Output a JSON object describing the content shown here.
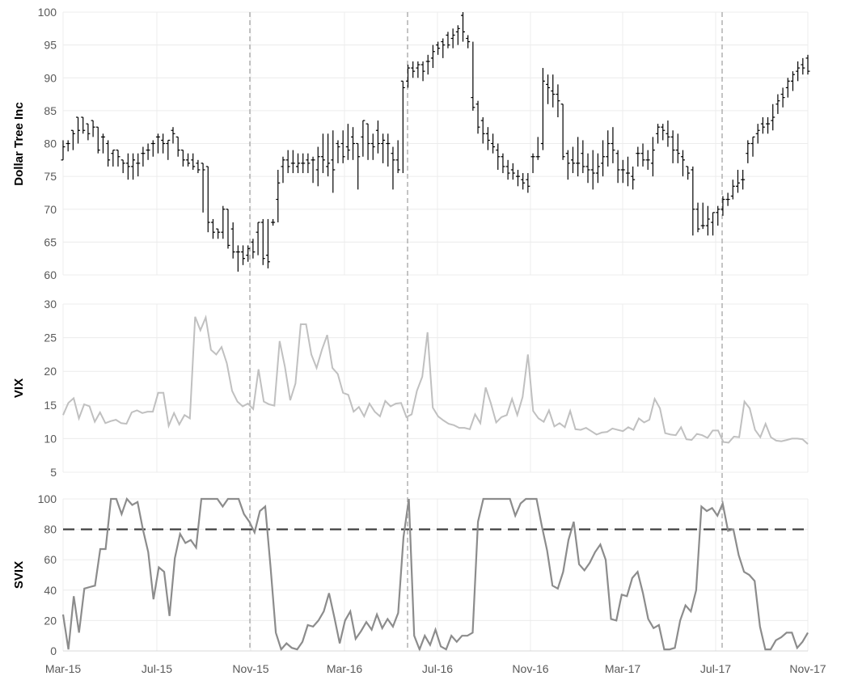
{
  "chart_data": {
    "type": "line",
    "x_labels": [
      "Mar-15",
      "Jul-15",
      "Nov-15",
      "Mar-16",
      "Jul-16",
      "Nov-16",
      "Mar-17",
      "Jul-17",
      "Nov-17"
    ],
    "event_markers": [
      "Nov-15",
      "Jun-16",
      "Jul-17"
    ],
    "colors": {
      "price": "#000000",
      "vix": "#c0c0c0",
      "svix": "#8c8c8c",
      "threshold": "#404040",
      "marker": "#b0b0b0",
      "grid": "#ececec"
    },
    "panels": [
      {
        "ylabel": "Dollar Tree Inc",
        "chart_type": "ohlc",
        "ylim": [
          60,
          100
        ],
        "yticks": [
          60,
          65,
          70,
          75,
          80,
          85,
          90,
          95,
          100
        ],
        "ohlc": [
          [
            77.5,
            80.5,
            77.5,
            79.5
          ],
          [
            80,
            80.5,
            78.8,
            80
          ],
          [
            82,
            82,
            79,
            81.5
          ],
          [
            84,
            84,
            80,
            82
          ],
          [
            84,
            84,
            81.5,
            82
          ],
          [
            83,
            83,
            80.5,
            81.5
          ],
          [
            83.5,
            83.5,
            81,
            82.5
          ],
          [
            82.5,
            82.5,
            78.5,
            79
          ],
          [
            81,
            81.5,
            78.5,
            81
          ],
          [
            80,
            80.5,
            76.5,
            77.5
          ],
          [
            78.5,
            79,
            76.5,
            79
          ],
          [
            79,
            79,
            76.5,
            78
          ],
          [
            77.5,
            77.5,
            75.5,
            77
          ],
          [
            77,
            78.5,
            74.5,
            76.5
          ],
          [
            76.5,
            78.5,
            74.5,
            77.5
          ],
          [
            77,
            78.5,
            75,
            77
          ],
          [
            78.5,
            79.5,
            76.5,
            78.5
          ],
          [
            79,
            80,
            77.5,
            79
          ],
          [
            80,
            80.5,
            78,
            80
          ],
          [
            81,
            81.5,
            78.5,
            81
          ],
          [
            80.5,
            81.5,
            78.5,
            80
          ],
          [
            80,
            80.5,
            77.5,
            80.5
          ],
          [
            82,
            82.5,
            80,
            81.5
          ],
          [
            81,
            81,
            78,
            79
          ],
          [
            79,
            79,
            76.5,
            77.5
          ],
          [
            77.5,
            78.5,
            76.5,
            77
          ],
          [
            77.5,
            78.5,
            76,
            76.5
          ],
          [
            77,
            77.5,
            75.5,
            76
          ],
          [
            77,
            77,
            69.5,
            76
          ],
          [
            76.5,
            76.5,
            66.5,
            68
          ],
          [
            68,
            68.5,
            65.5,
            66.5
          ],
          [
            67,
            67,
            65.5,
            66.5
          ],
          [
            66.5,
            70.5,
            65.5,
            70
          ],
          [
            70,
            70,
            64,
            64.5
          ],
          [
            67,
            68,
            62.5,
            63.5
          ],
          [
            63.5,
            64.5,
            60.5,
            63.5
          ],
          [
            63.5,
            64.5,
            61.5,
            62.5
          ],
          [
            63,
            64.5,
            62,
            64
          ],
          [
            65,
            65.5,
            62.5,
            63.5
          ],
          [
            66.5,
            68,
            63,
            68
          ],
          [
            68,
            68.5,
            61.5,
            62.5
          ],
          [
            63,
            68.5,
            61,
            62
          ],
          [
            68,
            68.5,
            67.5,
            68
          ],
          [
            71.5,
            76,
            68,
            74
          ],
          [
            76.5,
            78,
            74,
            77.5
          ],
          [
            77.5,
            79,
            75.5,
            76.5
          ],
          [
            77,
            79,
            75.5,
            77
          ],
          [
            76.5,
            78.5,
            75.5,
            77
          ],
          [
            77,
            78.5,
            75.5,
            77
          ],
          [
            77.5,
            78.5,
            75.5,
            77
          ],
          [
            77.5,
            78,
            74,
            77.5
          ],
          [
            76,
            79.5,
            73.5,
            78
          ],
          [
            78,
            81.5,
            75.5,
            77.5
          ],
          [
            76.5,
            81.5,
            75,
            77
          ],
          [
            77.5,
            82,
            72.5,
            76
          ],
          [
            80,
            80.5,
            77,
            79.5
          ],
          [
            80,
            82,
            77,
            78
          ],
          [
            79.5,
            83,
            77.5,
            79
          ],
          [
            81,
            82.5,
            77.5,
            80
          ],
          [
            80,
            80,
            73,
            78
          ],
          [
            81,
            83.5,
            78,
            83.5
          ],
          [
            83,
            83,
            77.5,
            80
          ],
          [
            80,
            81.5,
            77.5,
            79.5
          ],
          [
            82,
            83.5,
            78.5,
            80
          ],
          [
            80,
            81.5,
            77,
            80.5
          ],
          [
            80,
            81.5,
            76.5,
            80
          ],
          [
            78.5,
            79.5,
            73,
            77.5
          ],
          [
            77.5,
            80.5,
            75.5,
            76
          ],
          [
            89.5,
            89.5,
            75.5,
            88.5
          ],
          [
            89.5,
            92,
            88.5,
            91.5
          ],
          [
            91.5,
            92.5,
            90,
            91
          ],
          [
            91.5,
            92.5,
            90,
            92
          ],
          [
            92,
            92.5,
            89.5,
            91
          ],
          [
            92.5,
            93.5,
            90.5,
            92.5
          ],
          [
            93,
            95,
            91.5,
            94
          ],
          [
            95,
            95.5,
            93.5,
            94.5
          ],
          [
            95.5,
            96,
            93,
            95
          ],
          [
            96.5,
            97,
            94.5,
            95
          ],
          [
            96,
            97.5,
            94.5,
            96.5
          ],
          [
            97,
            98,
            95,
            97.5
          ],
          [
            99.5,
            100,
            95.5,
            97
          ],
          [
            96,
            96.5,
            94.5,
            95.5
          ],
          [
            87,
            95.5,
            85,
            85.5
          ],
          [
            86,
            86.5,
            81.5,
            82.5
          ],
          [
            83.5,
            84,
            80,
            81.5
          ],
          [
            81.5,
            82.5,
            79,
            80.5
          ],
          [
            80,
            81.5,
            78.5,
            79.5
          ],
          [
            79,
            80,
            76,
            78
          ],
          [
            78,
            78.5,
            75.5,
            76.5
          ],
          [
            76.5,
            77.5,
            74.5,
            75.5
          ],
          [
            76,
            77,
            74.5,
            75.5
          ],
          [
            75,
            76,
            73.5,
            75
          ],
          [
            74.5,
            75.5,
            73,
            74
          ],
          [
            74.5,
            75.5,
            72.5,
            73.5
          ],
          [
            78,
            78.5,
            75.5,
            78
          ],
          [
            78,
            81,
            77.5,
            78
          ],
          [
            80,
            91.5,
            79,
            89.5
          ],
          [
            89,
            90.5,
            86,
            88.5
          ],
          [
            88,
            90.5,
            85.5,
            87.5
          ],
          [
            87.5,
            89,
            84,
            86.5
          ],
          [
            86,
            86,
            77.5,
            78
          ],
          [
            78.5,
            79,
            74.5,
            77
          ],
          [
            77.5,
            79.5,
            75.5,
            77
          ],
          [
            77,
            81,
            75,
            77
          ],
          [
            78.5,
            80.5,
            75.5,
            76.5
          ],
          [
            76.5,
            78.5,
            74,
            76
          ],
          [
            76,
            79,
            73,
            75.5
          ],
          [
            75.5,
            78.5,
            74,
            76.5
          ],
          [
            77,
            80.5,
            75,
            78
          ],
          [
            78,
            82,
            76.5,
            80
          ],
          [
            80,
            82.5,
            77,
            79
          ],
          [
            78.5,
            79,
            74,
            76
          ],
          [
            76,
            77.5,
            74,
            76
          ],
          [
            75.5,
            78,
            73.5,
            75.5
          ],
          [
            75,
            76.5,
            73,
            74.5
          ],
          [
            78.5,
            79.5,
            76.5,
            78.5
          ],
          [
            78.5,
            80,
            76.5,
            77.5
          ],
          [
            77.5,
            79,
            76,
            77.5
          ],
          [
            77,
            81,
            75,
            79
          ],
          [
            81.5,
            83,
            80,
            82.5
          ],
          [
            82.5,
            83,
            80.5,
            82
          ],
          [
            81.5,
            83.5,
            79.5,
            81
          ],
          [
            81,
            82,
            77,
            79
          ],
          [
            79,
            81.5,
            77,
            78.5
          ],
          [
            78,
            79,
            75,
            77.5
          ],
          [
            76.5,
            76.5,
            74.5,
            75.5
          ],
          [
            76,
            76.5,
            66,
            70
          ],
          [
            70,
            71,
            66.5,
            67
          ],
          [
            67.5,
            71,
            67,
            67.5
          ],
          [
            67.5,
            70.5,
            66,
            68.5
          ],
          [
            68,
            69.5,
            66,
            69.5
          ],
          [
            69.5,
            70.5,
            67.5,
            70
          ],
          [
            70,
            72,
            69,
            71.5
          ],
          [
            71.5,
            72.5,
            70.5,
            71.5
          ],
          [
            72,
            74.5,
            71.5,
            73.5
          ],
          [
            73.5,
            76,
            72.5,
            74
          ],
          [
            74.5,
            76,
            73,
            74.5
          ],
          [
            78.5,
            80.5,
            77,
            80
          ],
          [
            80,
            81,
            78,
            81
          ],
          [
            81.5,
            83,
            80,
            82
          ],
          [
            83,
            84,
            81.5,
            82.5
          ],
          [
            83,
            84,
            81.5,
            83
          ],
          [
            83.5,
            86,
            82,
            84
          ],
          [
            86,
            87.5,
            84.5,
            86.5
          ],
          [
            87.5,
            88.5,
            85.5,
            87
          ],
          [
            88.5,
            90,
            87,
            89.5
          ],
          [
            89.5,
            91,
            88,
            90.5
          ],
          [
            91,
            92.5,
            89.5,
            91.5
          ],
          [
            92,
            93,
            90.5,
            91.5
          ],
          [
            93,
            93.5,
            90.5,
            91
          ]
        ]
      },
      {
        "ylabel": "VIX",
        "ylim": [
          5,
          30
        ],
        "yticks": [
          5,
          10,
          15,
          20,
          25,
          30
        ],
        "values": [
          13.5,
          15.3,
          16,
          13,
          15.1,
          14.8,
          12.5,
          13.9,
          12.3,
          12.6,
          12.8,
          12.3,
          12.2,
          13.9,
          14.2,
          13.8,
          14,
          14,
          16.8,
          16.8,
          11.9,
          13.8,
          12.1,
          13.5,
          13,
          28.1,
          26.1,
          28,
          23.2,
          22.5,
          23.6,
          21.2,
          17.1,
          15.5,
          14.8,
          15.2,
          14.4,
          20.3,
          15.5,
          15.1,
          14.9,
          24.5,
          20.7,
          15.7,
          18.2,
          27,
          27,
          22.5,
          20.5,
          23.2,
          25.4,
          20.5,
          19.6,
          16.8,
          16.5,
          14,
          14.7,
          13.3,
          15.2,
          14,
          13.3,
          15.6,
          14.8,
          15.2,
          15.3,
          13.2,
          13.6,
          17.1,
          19.2,
          25.8,
          14.6,
          13.3,
          12.7,
          12.2,
          12,
          11.6,
          11.6,
          11.4,
          13.6,
          12.3,
          17.6,
          15.2,
          12.4,
          13.2,
          13.5,
          15.9,
          13.5,
          16.2,
          22.5,
          14.1,
          13,
          12.5,
          14.2,
          11.8,
          12.3,
          11.7,
          14.1,
          11.4,
          11.3,
          11.6,
          11.1,
          10.6,
          10.9,
          11,
          11.5,
          11.3,
          11.1,
          11.7,
          11.3,
          13,
          12.4,
          12.8,
          15.9,
          14.5,
          10.8,
          10.6,
          10.5,
          11.7,
          9.9,
          9.8,
          10.7,
          10.5,
          10.1,
          11.2,
          11.2,
          9.5,
          9.4,
          10.3,
          10.2,
          15.5,
          14.5,
          11.3,
          10.2,
          12.2,
          10.2,
          9.7,
          9.6,
          9.8,
          10,
          10,
          9.9,
          9.2
        ]
      },
      {
        "ylabel": "SVIX",
        "ylim": [
          0,
          100
        ],
        "yticks": [
          0,
          20,
          40,
          60,
          80,
          100
        ],
        "threshold": 80,
        "values": [
          24,
          1,
          36,
          12,
          41,
          42,
          43,
          67,
          67,
          100,
          100,
          90,
          100,
          96,
          98,
          80,
          65,
          34,
          55,
          52,
          23,
          61,
          77,
          71,
          73,
          68,
          100,
          100,
          100,
          100,
          95,
          100,
          100,
          100,
          90,
          85,
          78,
          92,
          95,
          55,
          12,
          1,
          5,
          2,
          1,
          6,
          17,
          16,
          20,
          26,
          38,
          22,
          5,
          20,
          26,
          8,
          13,
          19,
          14,
          24,
          15,
          21,
          16,
          25,
          75,
          100,
          10,
          1,
          10,
          4,
          14,
          3,
          1,
          10,
          6,
          10,
          10,
          12,
          85,
          100,
          100,
          100,
          100,
          100,
          100,
          89,
          97,
          100,
          100,
          100,
          82,
          66,
          43,
          41,
          52,
          73,
          85,
          57,
          53,
          58,
          65,
          70,
          60,
          21,
          20,
          37,
          36,
          48,
          52,
          38,
          21,
          15,
          17,
          1,
          1,
          2,
          20,
          30,
          26,
          40,
          95,
          92,
          94,
          89,
          97,
          79,
          80,
          63,
          52,
          50,
          46,
          16,
          1,
          1,
          7,
          9,
          12,
          12,
          2,
          6,
          12
        ]
      }
    ]
  }
}
